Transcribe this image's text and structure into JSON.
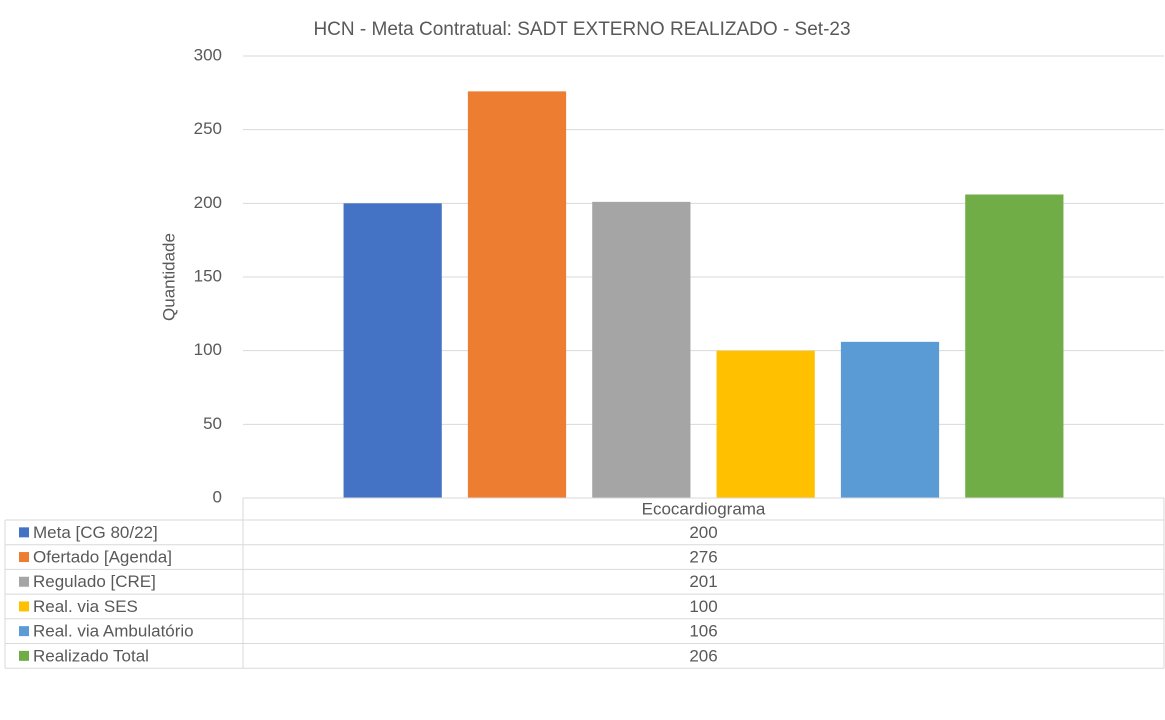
{
  "chart_data": {
    "type": "bar",
    "title": "HCN - Meta Contratual: SADT EXTERNO REALIZADO - Set-23",
    "y_label": "Quantidade",
    "categories": [
      "Ecocardiograma"
    ],
    "series": [
      {
        "name": "Meta [CG 80/22]",
        "color": "#4472c4",
        "values": [
          200
        ]
      },
      {
        "name": "Ofertado [Agenda]",
        "color": "#ed7d31",
        "values": [
          276
        ]
      },
      {
        "name": "Regulado [CRE]",
        "color": "#a5a5a5",
        "values": [
          201
        ]
      },
      {
        "name": "Real. via SES",
        "color": "#ffc000",
        "values": [
          100
        ]
      },
      {
        "name": "Real. via Ambulatório",
        "color": "#5b9bd5",
        "values": [
          106
        ]
      },
      {
        "name": "Realizado Total",
        "color": "#70ad47",
        "values": [
          206
        ]
      }
    ],
    "ylim": [
      0,
      300
    ],
    "yticks": [
      0,
      50,
      100,
      150,
      200,
      250,
      300
    ],
    "grid": true
  }
}
